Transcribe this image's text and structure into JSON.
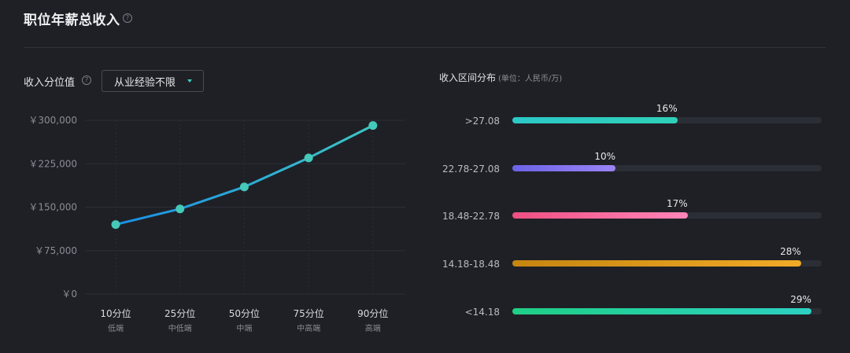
{
  "title": "职位年薪总收入",
  "help_glyph": "?",
  "percentile_section": {
    "label": "收入分位值",
    "dropdown": {
      "selected": "从业经验不限"
    }
  },
  "distribution_section": {
    "label": "收入区间分布",
    "unit": "(单位：人民币/万)"
  },
  "chart_data": [
    {
      "type": "line",
      "categories": [
        "10分位",
        "25分位",
        "50分位",
        "75分位",
        "90分位"
      ],
      "sublabels": [
        "低端",
        "中低端",
        "中端",
        "中高端",
        "高端"
      ],
      "values": [
        120000,
        147000,
        185000,
        235000,
        291000
      ],
      "y_ticks": [
        "￥0",
        "￥75,000",
        "￥150,000",
        "￥225,000",
        "￥300,000"
      ],
      "ylim": [
        0,
        300000
      ],
      "grid": true,
      "colors": {
        "line_start": "#1a8fe6",
        "line_end": "#3cc6c6",
        "marker": "#45c9b8",
        "grid": "#2c2e36",
        "tick": "#8a8c94"
      }
    },
    {
      "type": "bar",
      "orientation": "horizontal",
      "categories": [
        ">27.08",
        "22.78-27.08",
        "18.48-22.78",
        "14.18-18.48",
        "<14.18"
      ],
      "values": [
        16,
        10,
        17,
        28,
        29
      ],
      "value_labels": [
        "16%",
        "10%",
        "17%",
        "28%",
        "29%"
      ],
      "xlim": [
        0,
        30
      ],
      "colors": [
        [
          "#2cc8c8",
          "#2fd0b8"
        ],
        [
          "#6c63e8",
          "#9b84f4"
        ],
        [
          "#ef4f82",
          "#ff86b9"
        ],
        [
          "#c68510",
          "#f2ab27"
        ],
        [
          "#1fcf86",
          "#2dd0c2"
        ]
      ]
    }
  ]
}
